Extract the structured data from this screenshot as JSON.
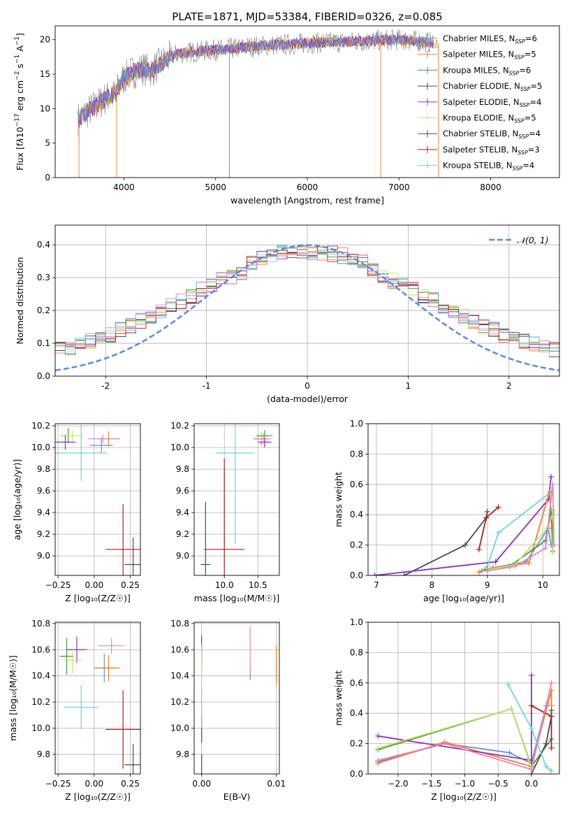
{
  "figure": {
    "title": "PLATE=1871, MJD=53384, FIBERID=0326, z=0.085"
  },
  "colors": {
    "series": [
      "#6a8fd8",
      "#f07f2a",
      "#3f9d3f",
      "#8e2db8",
      "#c7e36a",
      "#4a4a4a",
      "#b01e1e",
      "#6fd3df",
      "#e483c2"
    ],
    "gaussian": "#5f88d6",
    "grid": "#b0b0b0"
  },
  "chart_data": [
    {
      "type": "line",
      "panel": "spectrum",
      "title": "PLATE=1871, MJD=53384, FIBERID=0326, z=0.085",
      "xlabel": "wavelength [Angstrom, rest frame]",
      "ylabel_html": "Flux [f<tspan font-style='italic'>λ</tspan>10<tspan dy='-6' font-size='9'>−17</tspan><tspan dy='6'> erg cm</tspan><tspan dy='-6' font-size='9'>−2</tspan><tspan dy='6'> s</tspan><tspan dy='-6' font-size='9'>−1</tspan><tspan dy='6'> A</tspan><tspan dy='-6' font-size='9'>−1</tspan><tspan dy='6'>]</tspan>",
      "xlim": [
        3250,
        8750
      ],
      "ylim": [
        0,
        22
      ],
      "xticks": [
        4000,
        5000,
        6000,
        7000,
        8000
      ],
      "yticks": [
        0,
        5,
        10,
        15,
        20
      ],
      "grid": false,
      "legend_position": "top-right",
      "legend": [
        {
          "label": "Chabrier MILES, N",
          "sub": "SSP",
          "tail": "=6",
          "color": "#6a8fd8"
        },
        {
          "label": "Salpeter MILES, N",
          "sub": "SSP",
          "tail": "=5",
          "color": "#f07f2a"
        },
        {
          "label": "Kroupa MILES, N",
          "sub": "SSP",
          "tail": "=6",
          "color": "#3f9d3f"
        },
        {
          "label": "Chabrier ELODIE, N",
          "sub": "SSP",
          "tail": "=5",
          "color": "#4a4a4a"
        },
        {
          "label": "Salpeter ELODIE, N",
          "sub": "SSP",
          "tail": "=4",
          "color": "#8e2db8"
        },
        {
          "label": "Kroupa ELODIE, N",
          "sub": "SSP",
          "tail": "=5",
          "color": "#c7e36a"
        },
        {
          "label": "Chabrier STELIB, N",
          "sub": "SSP",
          "tail": "=4",
          "color": "#4a4a4a"
        },
        {
          "label": "Salpeter STELIB, N",
          "sub": "SSP",
          "tail": "=3",
          "color": "#b01e1e"
        },
        {
          "label": "Kroupa STELIB, N",
          "sub": "SSP",
          "tail": "=4",
          "color": "#6fd3df"
        }
      ],
      "continuum": {
        "x": [
          3500,
          3600,
          3700,
          3800,
          3900,
          4000,
          4100,
          4200,
          4300,
          4400,
          4500,
          4600,
          4800,
          5000,
          5200,
          5400,
          5600,
          5800,
          6000,
          6200,
          6400,
          6600,
          6800,
          7000,
          7200,
          7400
        ],
        "y": [
          8.5,
          9.5,
          10.5,
          11.5,
          12.0,
          14.5,
          15.3,
          15.8,
          15.5,
          16.5,
          17.5,
          18.0,
          18.3,
          18.5,
          18.7,
          19.0,
          19.2,
          19.3,
          19.5,
          19.6,
          19.7,
          19.8,
          19.9,
          20.0,
          19.8,
          19.5
        ]
      }
    },
    {
      "type": "histogram",
      "panel": "residuals",
      "xlabel": "(data-model)/error",
      "ylabel": "Normed distribution",
      "xlim": [
        -2.5,
        2.5
      ],
      "ylim": [
        0,
        0.46
      ],
      "xticks": [
        -2,
        -1,
        0,
        1,
        2
      ],
      "yticks": [
        0.0,
        0.1,
        0.2,
        0.3,
        0.4
      ],
      "grid": true,
      "legend_position": "top-right",
      "legend_label": "𝒩(0, 1)",
      "gaussian": {
        "mean": 0,
        "sigma": 1
      }
    },
    {
      "type": "scatter",
      "panel": "age-vs-Z",
      "xlabel": "Z [log₁₀(Z/Z☉)]",
      "ylabel": "age  [log₁₀(age/yr)]",
      "xlim": [
        -0.27,
        0.32
      ],
      "ylim": [
        8.82,
        10.22
      ],
      "xticks": [
        -0.25,
        0.0,
        0.25
      ],
      "xticklabels": [
        "−0.25",
        "0.00",
        "0.25"
      ],
      "yticks": [
        9.0,
        9.2,
        9.4,
        9.6,
        9.8,
        10.0,
        10.2
      ],
      "grid": true,
      "errorbars": [
        {
          "color": "#6a8fd8",
          "x": 0.05,
          "xerr": 0.08,
          "y": 10.02,
          "yerr": 0.07
        },
        {
          "color": "#f07f2a",
          "x": 0.1,
          "xerr": 0.08,
          "y": 10.08,
          "yerr": 0.07
        },
        {
          "color": "#3f9d3f",
          "x": -0.18,
          "xerr": 0.05,
          "y": 10.11,
          "yerr": 0.07
        },
        {
          "color": "#8e2db8",
          "x": -0.2,
          "xerr": 0.07,
          "y": 10.05,
          "yerr": 0.07
        },
        {
          "color": "#c7e36a",
          "x": -0.15,
          "xerr": 0.07,
          "y": 10.11,
          "yerr": 0.05
        },
        {
          "color": "#4a4a4a",
          "x": 0.27,
          "xerr": 0.06,
          "y": 8.92,
          "yerr": 0.25
        },
        {
          "color": "#b01e1e",
          "x": 0.2,
          "xerr": 0.12,
          "y": 9.06,
          "yerr": 0.42
        },
        {
          "color": "#6fd3df",
          "x": -0.09,
          "xerr": 0.18,
          "y": 9.95,
          "yerr": 0.26
        },
        {
          "color": "#e483c2",
          "x": 0.06,
          "xerr": 0.1,
          "y": 10.08,
          "yerr": 0.04
        }
      ]
    },
    {
      "type": "scatter",
      "panel": "age-vs-mass",
      "xlabel": "mass [log₁₀(M/M☉)]",
      "ylabel": "",
      "xlim": [
        9.55,
        10.82
      ],
      "ylim": [
        8.82,
        10.22
      ],
      "xticks": [
        10.0,
        10.5
      ],
      "xticklabels": [
        "10.0",
        "10.5"
      ],
      "yticks": [
        9.0,
        9.2,
        9.4,
        9.6,
        9.8,
        10.0,
        10.2
      ],
      "grid": true,
      "errorbars": [
        {
          "color": "#6a8fd8",
          "x": 10.55,
          "xerr": 0.1,
          "y": 10.08,
          "yerr": 0.06
        },
        {
          "color": "#f07f2a",
          "x": 10.55,
          "xerr": 0.12,
          "y": 10.08,
          "yerr": 0.06
        },
        {
          "color": "#3f9d3f",
          "x": 10.6,
          "xerr": 0.12,
          "y": 10.11,
          "yerr": 0.05
        },
        {
          "color": "#8e2db8",
          "x": 10.6,
          "xerr": 0.1,
          "y": 10.05,
          "yerr": 0.05
        },
        {
          "color": "#c7e36a",
          "x": 10.55,
          "xerr": 0.1,
          "y": 10.1,
          "yerr": 0.05
        },
        {
          "color": "#4a4a4a",
          "x": 9.72,
          "xerr": 0.07,
          "y": 8.92,
          "yerr": 0.58
        },
        {
          "color": "#b01e1e",
          "x": 10.0,
          "xerr": 0.3,
          "y": 9.06,
          "yerr": 0.84
        },
        {
          "color": "#6fd3df",
          "x": 10.16,
          "xerr": 0.28,
          "y": 9.95,
          "yerr": 0.84
        },
        {
          "color": "#e483c2",
          "x": 10.58,
          "xerr": 0.12,
          "y": 10.08,
          "yerr": 0.05
        }
      ]
    },
    {
      "type": "line",
      "panel": "mass-weight-vs-age",
      "xlabel": "age  [log₁₀(age/yr)]",
      "ylabel": "mass weight",
      "xlim": [
        6.85,
        10.3
      ],
      "ylim": [
        0,
        1.0
      ],
      "xticks": [
        7,
        8,
        9,
        10
      ],
      "yticks": [
        0.0,
        0.2,
        0.4,
        0.6,
        0.8,
        1.0
      ],
      "grid": true,
      "series": [
        {
          "color": "#4a4a4a",
          "x": [
            7.5,
            8.6,
            8.98,
            9.0
          ],
          "y": [
            0.0,
            0.2,
            0.38,
            0.42
          ]
        },
        {
          "color": "#8e2db8",
          "x": [
            6.97,
            9.15,
            10.1,
            10.15
          ],
          "y": [
            0.0,
            0.09,
            0.5,
            0.65
          ]
        },
        {
          "color": "#b01e1e",
          "x": [
            8.85,
            8.98,
            9.2
          ],
          "y": [
            0.17,
            0.38,
            0.45
          ]
        },
        {
          "color": "#6fd3df",
          "x": [
            8.9,
            9.0,
            9.2,
            10.15,
            10.18
          ],
          "y": [
            0.03,
            0.06,
            0.28,
            0.55,
            0.6
          ]
        },
        {
          "color": "#6a8fd8",
          "x": [
            8.9,
            9.1,
            9.7,
            10.1,
            10.15
          ],
          "y": [
            0.03,
            0.05,
            0.09,
            0.31,
            0.2
          ]
        },
        {
          "color": "#f07f2a",
          "x": [
            8.85,
            9.1,
            9.75,
            10.12,
            10.2
          ],
          "y": [
            0.02,
            0.05,
            0.08,
            0.55,
            0.2
          ]
        },
        {
          "color": "#3f9d3f",
          "x": [
            9.0,
            9.4,
            10.05,
            10.15,
            10.18
          ],
          "y": [
            0.04,
            0.06,
            0.23,
            0.43,
            0.16
          ]
        },
        {
          "color": "#c7e36a",
          "x": [
            9.05,
            9.5,
            10.1,
            10.2,
            10.18
          ],
          "y": [
            0.04,
            0.07,
            0.32,
            0.43,
            0.15
          ]
        },
        {
          "color": "#e483c2",
          "x": [
            9.0,
            9.5,
            10.05,
            10.18,
            10.2
          ],
          "y": [
            0.03,
            0.06,
            0.18,
            0.6,
            0.2
          ]
        }
      ]
    },
    {
      "type": "scatter",
      "panel": "mass-vs-Z",
      "xlabel": "Z [log₁₀(Z/Z☉)]",
      "ylabel": "mass [log₁₀(M/M☉)]",
      "xlim": [
        -0.27,
        0.32
      ],
      "ylim": [
        9.65,
        10.81
      ],
      "xticks": [
        -0.25,
        0.0,
        0.25
      ],
      "xticklabels": [
        "−0.25",
        "0.00",
        "0.25"
      ],
      "yticks": [
        9.8,
        10.0,
        10.2,
        10.4,
        10.6,
        10.8
      ],
      "grid": true,
      "errorbars": [
        {
          "color": "#6a8fd8",
          "x": 0.07,
          "xerr": 0.07,
          "y": 10.46,
          "yerr": 0.11
        },
        {
          "color": "#f07f2a",
          "x": 0.1,
          "xerr": 0.08,
          "y": 10.46,
          "yerr": 0.1
        },
        {
          "color": "#3f9d3f",
          "x": -0.19,
          "xerr": 0.05,
          "y": 10.55,
          "yerr": 0.14
        },
        {
          "color": "#8e2db8",
          "x": -0.12,
          "xerr": 0.07,
          "y": 10.6,
          "yerr": 0.1
        },
        {
          "color": "#c7e36a",
          "x": -0.15,
          "xerr": 0.06,
          "y": 10.52,
          "yerr": 0.1
        },
        {
          "color": "#4a4a4a",
          "x": 0.27,
          "xerr": 0.06,
          "y": 9.72,
          "yerr": 0.16
        },
        {
          "color": "#b01e1e",
          "x": 0.2,
          "xerr": 0.12,
          "y": 9.99,
          "yerr": 0.3
        },
        {
          "color": "#6fd3df",
          "x": -0.09,
          "xerr": 0.12,
          "y": 10.16,
          "yerr": 0.17
        },
        {
          "color": "#e483c2",
          "x": 0.12,
          "xerr": 0.09,
          "y": 10.63,
          "yerr": 0.06
        }
      ]
    },
    {
      "type": "scatter",
      "panel": "mass-vs-EBV",
      "xlabel": "E(B-V)",
      "ylabel": "",
      "xlim": [
        -0.001,
        0.0104
      ],
      "ylim": [
        9.65,
        10.81
      ],
      "xticks": [
        0.0,
        0.01
      ],
      "xticklabels": [
        "0.00",
        "0.01"
      ],
      "yticks": [
        9.8,
        10.0,
        10.2,
        10.4,
        10.6,
        10.8
      ],
      "grid": true,
      "errorbars": [
        {
          "color": "#6a8fd8",
          "x": 0.0065,
          "xerr": 0,
          "y": 10.42,
          "yerr": 0.05
        },
        {
          "color": "#f07f2a",
          "x": 0.01,
          "xerr": 0,
          "y": 10.48,
          "yerr": 0.15
        },
        {
          "color": "#3f9d3f",
          "x": 0.0,
          "xerr": 0,
          "y": 10.55,
          "yerr": 0.1
        },
        {
          "color": "#8e2db8",
          "x": 0.0,
          "xerr": 0,
          "y": 10.63,
          "yerr": 0.08
        },
        {
          "color": "#c7e36a",
          "x": 0.0,
          "xerr": 0,
          "y": 10.52,
          "yerr": 0.12
        },
        {
          "color": "#4a4a4a",
          "x": 0.0,
          "xerr": 0,
          "y": 9.72,
          "yerr": 0.08
        },
        {
          "color": "#b01e1e",
          "x": 0.0,
          "xerr": 0,
          "y": 9.99,
          "yerr": 0.1
        },
        {
          "color": "#6fd3df",
          "x": 0.0,
          "xerr": 0,
          "y": 10.16,
          "yerr": 0.16
        },
        {
          "color": "#e483c2",
          "x": 0.0065,
          "xerr": 0,
          "y": 10.6,
          "yerr": 0.18
        }
      ]
    },
    {
      "type": "line",
      "panel": "mass-weight-vs-Z",
      "xlabel": "Z [log₁₀(Z/Z☉)]",
      "ylabel": "mass weight",
      "xlim": [
        -2.45,
        0.42
      ],
      "ylim": [
        0,
        1.0
      ],
      "xticks": [
        -2.0,
        -1.5,
        -1.0,
        -0.5,
        0.0
      ],
      "xticklabels": [
        "−2.0",
        "−1.5",
        "−1.0",
        "−0.5",
        "0.0"
      ],
      "yticks": [
        0.0,
        0.2,
        0.4,
        0.6,
        0.8,
        1.0
      ],
      "grid": true,
      "series": [
        {
          "color": "#6a8fd8",
          "x": [
            -2.3,
            -1.3,
            -0.33,
            0.0,
            0.22
          ],
          "y": [
            0.08,
            0.2,
            0.14,
            0.07,
            0.45
          ]
        },
        {
          "color": "#f07f2a",
          "x": [
            -2.3,
            -1.3,
            0.0,
            0.3,
            0.3
          ],
          "y": [
            0.07,
            0.21,
            0.05,
            0.55,
            0.45
          ]
        },
        {
          "color": "#3f9d3f",
          "x": [
            -2.3,
            -0.3,
            0.0,
            0.3
          ],
          "y": [
            0.16,
            0.43,
            0.05,
            0.23
          ]
        },
        {
          "color": "#8e2db8",
          "x": [
            -2.3,
            0.0,
            0.0
          ],
          "y": [
            0.25,
            0.09,
            0.65
          ]
        },
        {
          "color": "#c7e36a",
          "x": [
            -2.3,
            -0.3,
            0.0
          ],
          "y": [
            0.17,
            0.43,
            0.04
          ]
        },
        {
          "color": "#4a4a4a",
          "x": [
            0.0,
            0.22,
            0.3,
            0.3
          ],
          "y": [
            0.0,
            0.2,
            0.38,
            0.42
          ]
        },
        {
          "color": "#b01e1e",
          "x": [
            0.0,
            0.3,
            0.3
          ],
          "y": [
            0.45,
            0.38,
            0.17
          ]
        },
        {
          "color": "#6fd3df",
          "x": [
            -0.35,
            0.0,
            0.22,
            0.3
          ],
          "y": [
            0.59,
            0.3,
            0.05,
            0.02
          ]
        },
        {
          "color": "#e483c2",
          "x": [
            -2.3,
            -1.3,
            0.0,
            0.3
          ],
          "y": [
            0.09,
            0.2,
            0.03,
            0.6
          ]
        }
      ]
    }
  ]
}
